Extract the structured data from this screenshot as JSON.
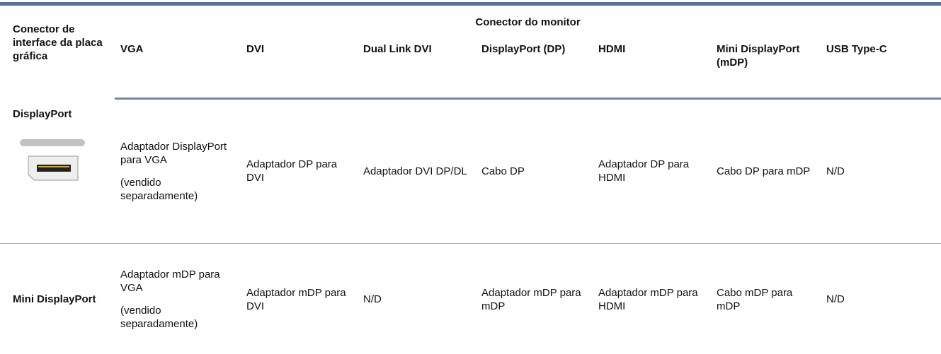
{
  "table": {
    "corner_header": "Conector de interface da placa gráfica",
    "group_header": "Conector do monitor",
    "columns": [
      "VGA",
      "DVI",
      "Dual Link DVI",
      "DisplayPort (DP)",
      "HDMI",
      "Mini DisplayPort (mDP)",
      "USB Type-C"
    ],
    "rows": [
      {
        "label": "DisplayPort",
        "cells": [
          [
            "Adaptador DisplayPort para VGA",
            "(vendido separadamente)"
          ],
          [
            "Adaptador DP para DVI"
          ],
          [
            "Adaptador DVI DP/DL"
          ],
          [
            "Cabo DP"
          ],
          [
            "Adaptador DP para HDMI"
          ],
          [
            "Cabo DP para mDP"
          ],
          [
            "N/D"
          ]
        ]
      },
      {
        "label": "Mini DisplayPort",
        "cells": [
          [
            "Adaptador mDP para VGA",
            "(vendido separadamente)"
          ],
          [
            "Adaptador mDP para DVI"
          ],
          [
            "N/D"
          ],
          [
            "Adaptador mDP para mDP"
          ],
          [
            "Adaptador mDP para HDMI"
          ],
          [
            "Cabo mDP para mDP"
          ],
          [
            "N/D"
          ]
        ]
      }
    ]
  }
}
